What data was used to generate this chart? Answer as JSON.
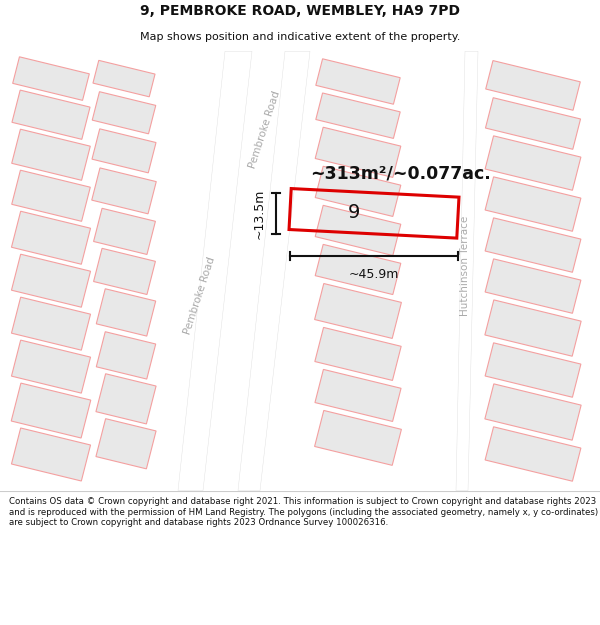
{
  "title_line1": "9, PEMBROKE ROAD, WEMBLEY, HA9 7PD",
  "title_line2": "Map shows position and indicative extent of the property.",
  "footer_text": "Contains OS data © Crown copyright and database right 2021. This information is subject to Crown copyright and database rights 2023 and is reproduced with the permission of HM Land Registry. The polygons (including the associated geometry, namely x, y co-ordinates) are subject to Crown copyright and database rights 2023 Ordnance Survey 100026316.",
  "area_label": "~313m²/~0.077ac.",
  "width_label": "~45.9m",
  "height_label": "~13.5m",
  "number_label": "9",
  "map_bg": "#ffffff",
  "building_fill": "#e8e8e8",
  "building_stroke": "#f4a0a0",
  "highlight_stroke": "#dd0000",
  "dim_line_color": "#111111",
  "text_color": "#111111",
  "road_label_color": "#aaaaaa",
  "footer_bg": "#ffffff",
  "title_bg": "#ffffff",
  "tilt_deg": -14
}
